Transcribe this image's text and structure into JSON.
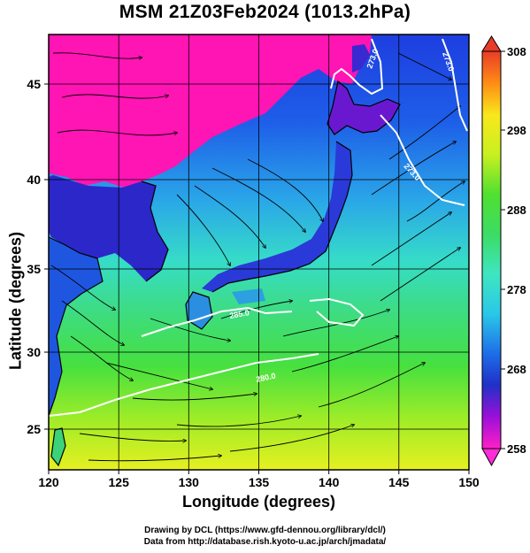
{
  "figure": {
    "title": "MSM 21Z03Feb2024 (1013.2hPa)",
    "xlabel": "Longitude (degrees)",
    "ylabel": "Latitude  (degrees)",
    "credit_line1": "Drawing by DCL (https://www.gfd-dennou.org/library/dcl/)",
    "credit_line2": "Data from http://database.rish.kyoto-u.ac.jp/arch/jmadata/"
  },
  "map": {
    "lon_range": [
      120,
      150
    ],
    "lat_range": [
      22.4,
      47.6
    ],
    "lon_ticks": [
      "120",
      "125",
      "130",
      "135",
      "140",
      "145",
      "150"
    ],
    "lat_ticks": [
      "25",
      "30",
      "35",
      "40",
      "45"
    ],
    "contour_labels": [
      "273.0",
      "273.0",
      "273.0",
      "280.0",
      "285.0"
    ]
  },
  "colorbar": {
    "min": 258,
    "max": 308,
    "tick_labels": [
      "308",
      "298",
      "288",
      "278",
      "268",
      "258"
    ],
    "colors": {
      "v258": "#ff20c8",
      "v262": "#9a10d8",
      "v266": "#2030c8",
      "v270": "#1e6ee8",
      "v275": "#2ac8e8",
      "v280": "#3ee6c0",
      "v285": "#3cdc64",
      "v290": "#50e030",
      "v295": "#c8f020",
      "v300": "#f8e81c",
      "v304": "#ff8c14",
      "v308": "#e83c28"
    }
  },
  "colors": {
    "land_mask": "#ff14b4",
    "coastline": "#000000",
    "grid": "#000000",
    "contour": "#ffffff"
  }
}
